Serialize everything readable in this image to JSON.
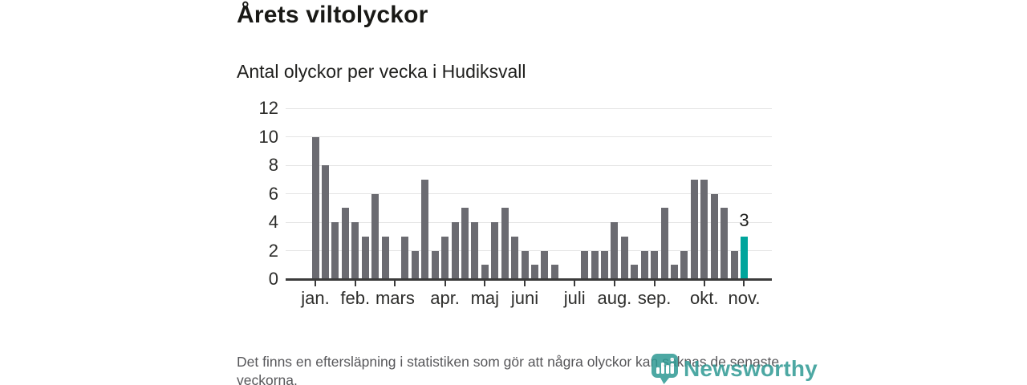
{
  "chart_data": {
    "type": "bar",
    "title": "Årets viltolyckor",
    "subtitle": "Antal olyckor per vecka i Hudiksvall",
    "x_unit": "vecka",
    "values": [
      10,
      8,
      4,
      5,
      4,
      3,
      6,
      3,
      0,
      3,
      2,
      7,
      2,
      3,
      4,
      5,
      4,
      1,
      4,
      5,
      3,
      2,
      1,
      2,
      1,
      0,
      0,
      2,
      2,
      2,
      4,
      3,
      1,
      2,
      2,
      5,
      1,
      2,
      7,
      7,
      6,
      5,
      2,
      3
    ],
    "y_ticks": [
      0,
      2,
      4,
      6,
      8,
      10,
      12
    ],
    "ylim": [
      0,
      12
    ],
    "grid": true,
    "legend": "none",
    "month_ticks": [
      {
        "label": "jan.",
        "week": 1
      },
      {
        "label": "feb.",
        "week": 5
      },
      {
        "label": "mars",
        "week": 9
      },
      {
        "label": "apr.",
        "week": 14
      },
      {
        "label": "maj",
        "week": 18
      },
      {
        "label": "juni",
        "week": 22
      },
      {
        "label": "juli",
        "week": 27
      },
      {
        "label": "aug.",
        "week": 31
      },
      {
        "label": "sep.",
        "week": 35
      },
      {
        "label": "okt.",
        "week": 40
      },
      {
        "label": "nov.",
        "week": 44
      }
    ],
    "highlight": {
      "week": 44,
      "value": 3,
      "label": "3",
      "color": "#00a59c"
    },
    "bar_color": "#6b6b71"
  },
  "footer": {
    "disclaimer": "Det finns en eftersläpning i statistiken som gör att några olyckor kan saknas de senaste veckorna."
  },
  "branding": {
    "logo_text": "Newsworthy",
    "logo_icon": "speech-bubble-bar-chart-icon",
    "color": "#2f9a94"
  }
}
